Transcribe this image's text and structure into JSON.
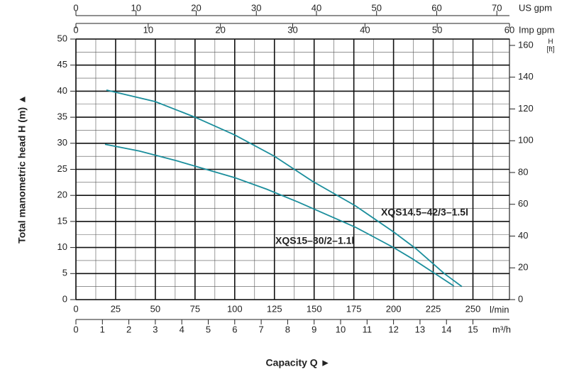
{
  "chart_data": {
    "type": "line",
    "x_label": "Capacity Q  ►",
    "y_label": "Total manometric head H (m)  ▲",
    "x_unit": "l/min",
    "xlim": [
      0,
      273
    ],
    "xticks": [
      0,
      25,
      50,
      75,
      100,
      125,
      150,
      175,
      200,
      225,
      250
    ],
    "xminorticks": [
      12.5,
      37.5,
      62.5,
      87.5,
      112.5,
      137.5,
      162.5,
      187.5,
      212.5,
      237.5,
      262.5
    ],
    "ylim": [
      0,
      50
    ],
    "yticks": [
      0,
      5,
      10,
      15,
      20,
      25,
      30,
      35,
      40,
      45,
      50
    ],
    "yminorticks": [
      2.5,
      7.5,
      12.5,
      17.5,
      22.5,
      27.5,
      32.5,
      37.5,
      42.5,
      47.5
    ],
    "y2_label": "H",
    "y2_unit": "[ft]",
    "y2lim": [
      0,
      164
    ],
    "y2ticks": [
      0,
      20,
      40,
      60,
      80,
      100,
      120,
      140,
      160
    ],
    "extra_x_axes": [
      {
        "unit": "m³/h",
        "lim": [
          0,
          16.38
        ],
        "ticks": [
          0,
          1,
          2,
          3,
          4,
          5,
          6,
          7,
          8,
          9,
          10,
          11,
          12,
          13,
          14,
          15
        ]
      },
      {
        "unit": "US gpm",
        "lim": [
          0,
          72.1
        ],
        "ticks": [
          0,
          10,
          20,
          30,
          40,
          50,
          60,
          70
        ]
      },
      {
        "unit": "Imp gpm",
        "lim": [
          0,
          60
        ],
        "ticks": [
          0,
          10,
          20,
          30,
          40,
          50,
          60
        ]
      }
    ],
    "grid": true,
    "series": [
      {
        "name": "XQS14.5–42/3–1.5l",
        "color": "#1b8e9c",
        "x": [
          19.2,
          50,
          75,
          100,
          125,
          149,
          176,
          200,
          214,
          232,
          243
        ],
        "values": [
          40.2,
          38,
          35,
          31.6,
          27.5,
          22.7,
          18,
          13,
          9.8,
          5,
          2.5
        ]
      },
      {
        "name": "XQS15–30/2–1.1l",
        "color": "#1b8e9c",
        "x": [
          18.3,
          40,
          64,
          100,
          120,
          140,
          176,
          200,
          212,
          225,
          238
        ],
        "values": [
          29.8,
          28.5,
          26.6,
          23.4,
          21.2,
          18.7,
          13.9,
          10,
          7.8,
          5.2,
          2.6
        ]
      }
    ]
  }
}
